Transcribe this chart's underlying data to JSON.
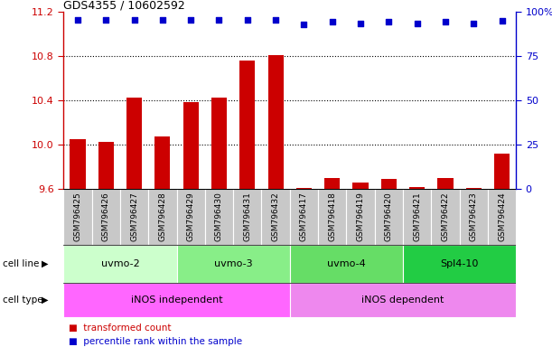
{
  "title": "GDS4355 / 10602592",
  "samples": [
    "GSM796425",
    "GSM796426",
    "GSM796427",
    "GSM796428",
    "GSM796429",
    "GSM796430",
    "GSM796431",
    "GSM796432",
    "GSM796417",
    "GSM796418",
    "GSM796419",
    "GSM796420",
    "GSM796421",
    "GSM796422",
    "GSM796423",
    "GSM796424"
  ],
  "transformed_count": [
    10.05,
    10.03,
    10.43,
    10.08,
    10.39,
    10.43,
    10.76,
    10.81,
    9.61,
    9.7,
    9.66,
    9.69,
    9.62,
    9.7,
    9.61,
    9.92
  ],
  "percentile_y_values": [
    11.13,
    11.13,
    11.13,
    11.13,
    11.13,
    11.13,
    11.13,
    11.13,
    11.09,
    11.11,
    11.1,
    11.11,
    11.1,
    11.11,
    11.1,
    11.12
  ],
  "ylim": [
    9.6,
    11.2
  ],
  "yticks_left": [
    9.6,
    10.0,
    10.4,
    10.8,
    11.2
  ],
  "yticks_right_vals": [
    9.6,
    10.0,
    10.4,
    10.8,
    11.2
  ],
  "yticks_right_labels": [
    "0",
    "25",
    "50",
    "75",
    "100%"
  ],
  "cell_line_groups": [
    {
      "label": "uvmo-2",
      "start": 0,
      "end": 4,
      "color": "#ccffcc"
    },
    {
      "label": "uvmo-3",
      "start": 4,
      "end": 8,
      "color": "#88ee88"
    },
    {
      "label": "uvmo-4",
      "start": 8,
      "end": 12,
      "color": "#66dd66"
    },
    {
      "label": "Spl4-10",
      "start": 12,
      "end": 16,
      "color": "#22cc44"
    }
  ],
  "cell_type_groups": [
    {
      "label": "iNOS independent",
      "start": 0,
      "end": 8,
      "color": "#ff66ff"
    },
    {
      "label": "iNOS dependent",
      "start": 8,
      "end": 16,
      "color": "#ee88ee"
    }
  ],
  "bar_color": "#cc0000",
  "dot_color": "#0000cc",
  "tick_color_left": "#cc0000",
  "tick_color_right": "#0000cc",
  "sample_box_color": "#c8c8c8",
  "grid_yticks": [
    10.0,
    10.4,
    10.8
  ]
}
